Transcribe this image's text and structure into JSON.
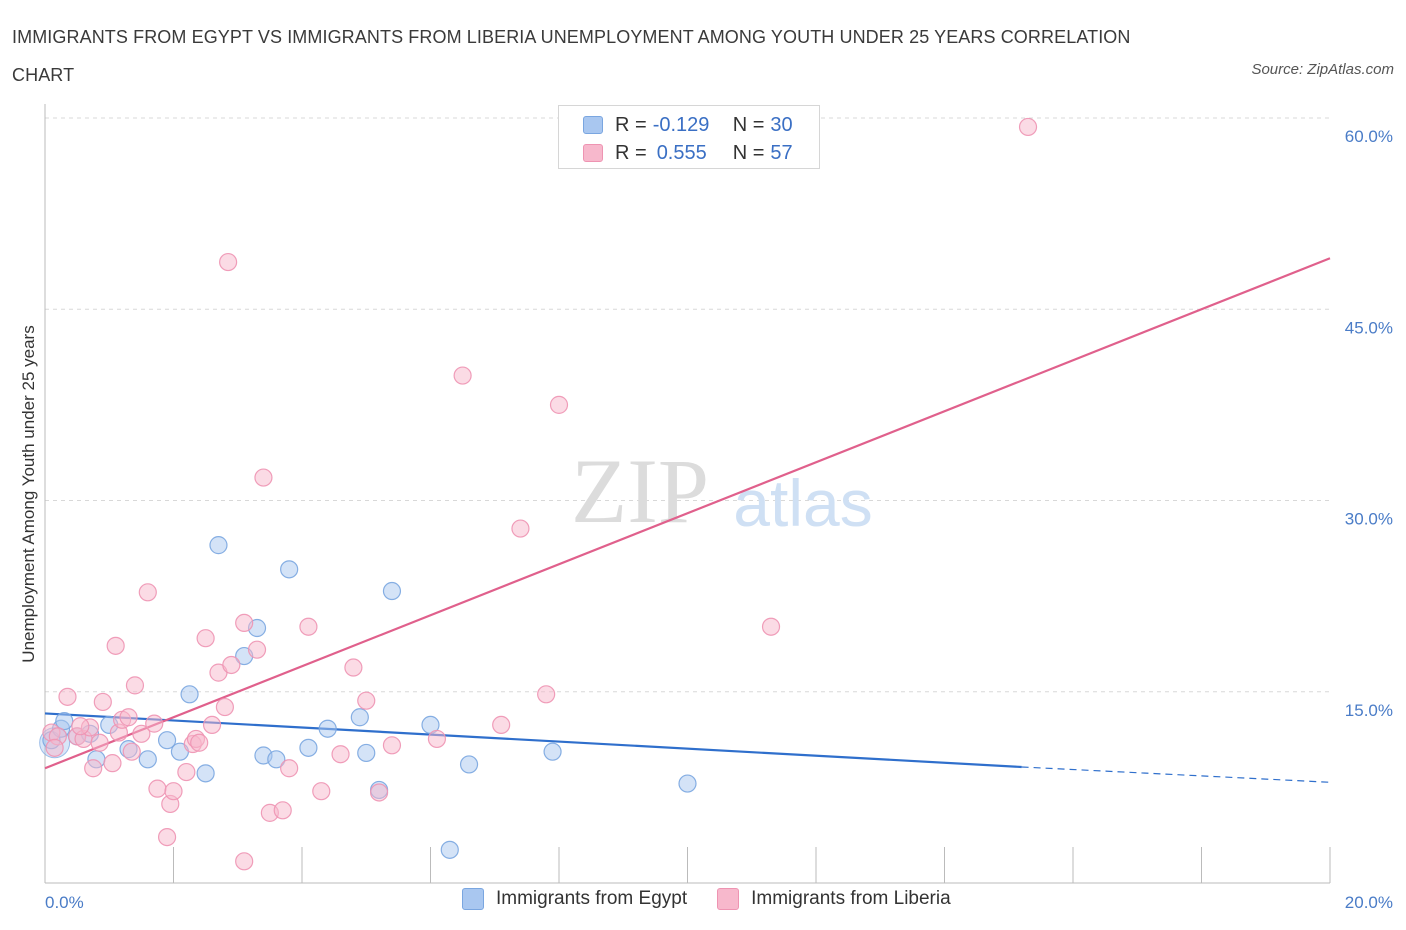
{
  "title": "IMMIGRANTS FROM EGYPT VS IMMIGRANTS FROM LIBERIA UNEMPLOYMENT AMONG YOUTH UNDER 25 YEARS CORRELATION CHART",
  "source": "Source: ZipAtlas.com",
  "watermark": {
    "zip": "ZIP",
    "atlas": "atlas"
  },
  "colors": {
    "egypt_fill": "#a9c7f0",
    "egypt_stroke": "#7aa6e0",
    "egypt_line": "#2f6fcc",
    "liberia_fill": "#f7b8cc",
    "liberia_stroke": "#ee94b2",
    "liberia_line": "#e0608c",
    "accent_text": "#3a6fc4"
  },
  "legend": {
    "rows": [
      {
        "r_label": "R =",
        "r_value": "-0.129",
        "n_label": "N =",
        "n_value": "30"
      },
      {
        "r_label": "R =",
        "r_value": "0.555",
        "n_label": "N =",
        "n_value": "57"
      }
    ]
  },
  "bottom_legend": [
    "Immigrants from Egypt",
    "Immigrants from Liberia"
  ],
  "chart_data": {
    "type": "scatter",
    "xlabel": "",
    "ylabel": "Unemployment Among Youth under 25 years",
    "xlim": [
      0,
      20
    ],
    "ylim": [
      0,
      60
    ],
    "x_tick_labels": [
      "0.0%",
      "20.0%"
    ],
    "y_tick_labels": [
      "15.0%",
      "30.0%",
      "45.0%",
      "60.0%"
    ],
    "y_ticks": [
      15,
      30,
      45,
      60
    ],
    "grid": true,
    "series": [
      {
        "name": "Immigrants from Egypt",
        "r": -0.129,
        "n": 30,
        "trend": {
          "x0": 0,
          "y0": 13.3,
          "x1": 15.2,
          "y1": 9.1,
          "dash_to_x": 20,
          "dash_to_y": 7.9
        },
        "points": [
          [
            0.1,
            11.2
          ],
          [
            0.25,
            12.1
          ],
          [
            0.3,
            12.7
          ],
          [
            0.5,
            11.5
          ],
          [
            0.7,
            11.7
          ],
          [
            0.8,
            9.7
          ],
          [
            1.0,
            12.4
          ],
          [
            1.3,
            10.5
          ],
          [
            1.6,
            9.7
          ],
          [
            1.9,
            11.2
          ],
          [
            2.1,
            10.3
          ],
          [
            2.25,
            14.8
          ],
          [
            2.5,
            8.6
          ],
          [
            2.7,
            26.5
          ],
          [
            3.1,
            17.8
          ],
          [
            3.3,
            20.0
          ],
          [
            3.4,
            10.0
          ],
          [
            3.6,
            9.7
          ],
          [
            3.8,
            24.6
          ],
          [
            4.1,
            10.6
          ],
          [
            4.4,
            12.1
          ],
          [
            4.9,
            13.0
          ],
          [
            5.0,
            10.2
          ],
          [
            5.2,
            7.3
          ],
          [
            5.4,
            22.9
          ],
          [
            6.0,
            12.4
          ],
          [
            6.3,
            2.6
          ],
          [
            6.6,
            9.3
          ],
          [
            7.9,
            10.3
          ],
          [
            10.0,
            7.8
          ]
        ]
      },
      {
        "name": "Immigrants from Liberia",
        "r": 0.555,
        "n": 57,
        "trend": {
          "x0": 0,
          "y0": 9.0,
          "x1": 20,
          "y1": 49.0
        },
        "points": [
          [
            0.1,
            11.8
          ],
          [
            0.2,
            11.5
          ],
          [
            0.35,
            14.6
          ],
          [
            0.5,
            11.5
          ],
          [
            0.6,
            11.3
          ],
          [
            0.7,
            12.2
          ],
          [
            0.75,
            9.0
          ],
          [
            0.85,
            11.0
          ],
          [
            0.9,
            14.2
          ],
          [
            1.1,
            18.6
          ],
          [
            1.15,
            11.8
          ],
          [
            1.2,
            12.8
          ],
          [
            1.3,
            13.0
          ],
          [
            1.35,
            10.3
          ],
          [
            1.4,
            15.5
          ],
          [
            1.5,
            11.7
          ],
          [
            1.6,
            22.8
          ],
          [
            1.7,
            12.5
          ],
          [
            1.75,
            7.4
          ],
          [
            1.9,
            3.6
          ],
          [
            1.95,
            6.2
          ],
          [
            2.0,
            7.2
          ],
          [
            2.2,
            8.7
          ],
          [
            2.3,
            10.9
          ],
          [
            2.35,
            11.3
          ],
          [
            2.4,
            11.0
          ],
          [
            2.5,
            19.2
          ],
          [
            2.6,
            12.4
          ],
          [
            2.7,
            16.5
          ],
          [
            2.8,
            13.8
          ],
          [
            2.85,
            48.7
          ],
          [
            2.9,
            17.1
          ],
          [
            3.1,
            1.7
          ],
          [
            3.1,
            20.4
          ],
          [
            3.3,
            18.3
          ],
          [
            3.4,
            31.8
          ],
          [
            3.5,
            5.5
          ],
          [
            3.7,
            5.7
          ],
          [
            3.8,
            9.0
          ],
          [
            4.1,
            20.1
          ],
          [
            4.3,
            7.2
          ],
          [
            4.6,
            10.1
          ],
          [
            4.8,
            16.9
          ],
          [
            5.0,
            14.3
          ],
          [
            5.2,
            7.1
          ],
          [
            5.4,
            10.8
          ],
          [
            6.1,
            11.3
          ],
          [
            6.5,
            39.8
          ],
          [
            7.1,
            12.4
          ],
          [
            7.4,
            27.8
          ],
          [
            7.8,
            14.8
          ],
          [
            8.0,
            37.5
          ],
          [
            11.3,
            20.1
          ],
          [
            15.3,
            59.3
          ],
          [
            0.15,
            10.6
          ],
          [
            0.55,
            12.3
          ],
          [
            1.05,
            9.4
          ]
        ]
      }
    ]
  }
}
